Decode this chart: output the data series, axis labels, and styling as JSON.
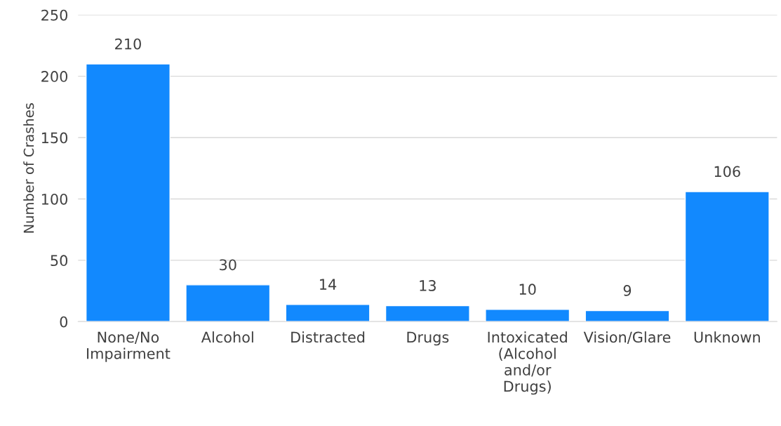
{
  "chart_data": {
    "type": "bar",
    "ylabel": "Number of Crashes",
    "categories": [
      "None/No\nImpairment",
      "Alcohol",
      "Distracted",
      "Drugs",
      "Intoxicated\n(Alcohol\nand/or\nDrugs)",
      "Vision/Glare",
      "Unknown"
    ],
    "values": [
      210,
      30,
      14,
      13,
      10,
      9,
      106
    ],
    "color": "#1289fe",
    "ylim": [
      0,
      250
    ],
    "yticks": [
      0,
      50,
      100,
      150,
      200,
      250
    ],
    "grid": "y",
    "data_labels": true
  }
}
